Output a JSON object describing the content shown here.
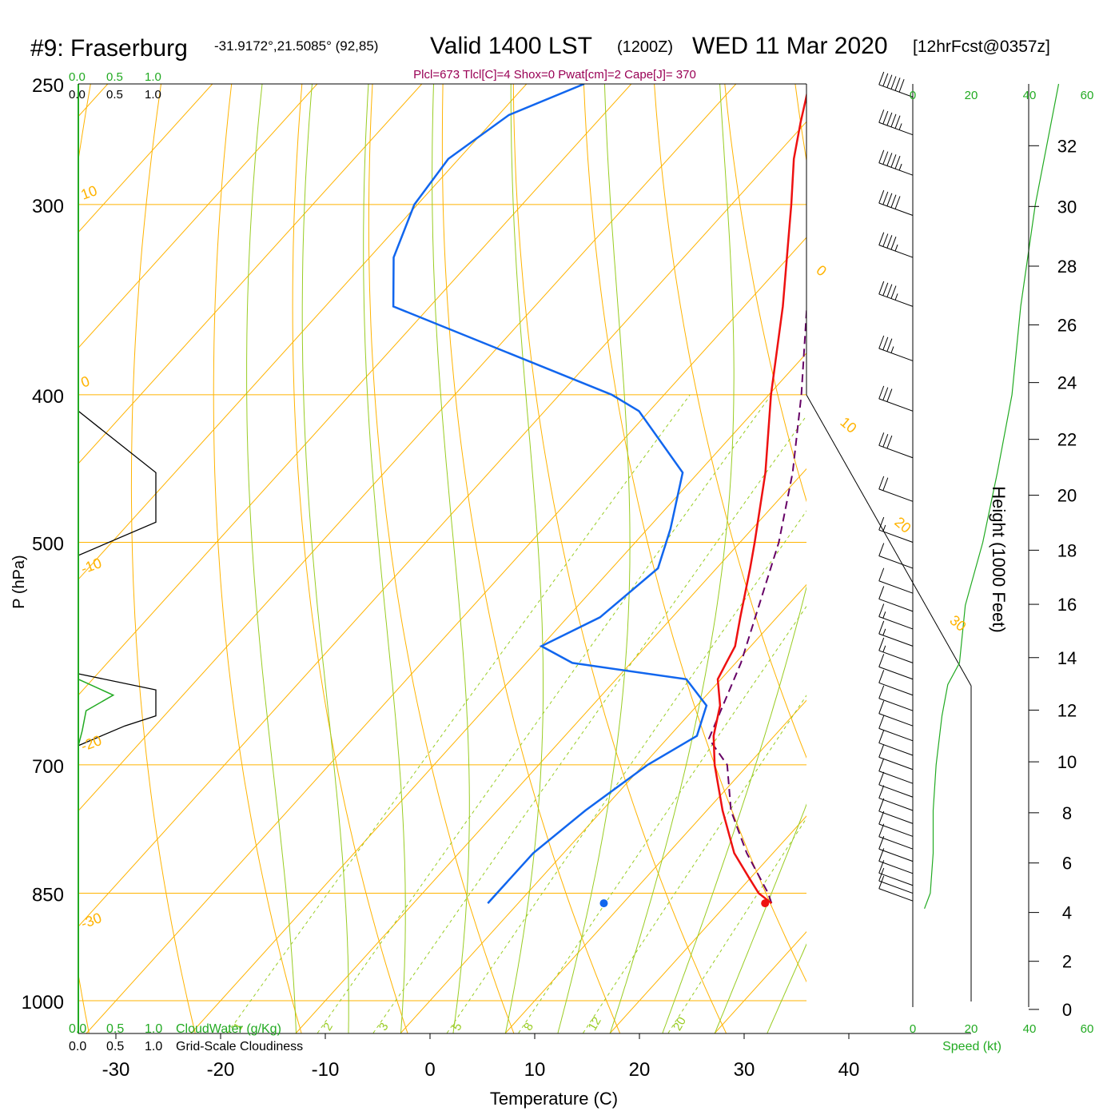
{
  "header": {
    "station": "#9: Fraserburg",
    "coords": "-31.9172°,21.5085° (92,85)",
    "valid": "Valid 1400 LST",
    "zulu": "(1200Z)",
    "date": "WED 11 Mar 2020",
    "forecast": "[12hrFcst@0357z]",
    "indices": "Plcl=673 Tlcl[C]=4 Shox=0 Pwat[cm]=2 Cape[J]= 370"
  },
  "colors": {
    "temperature": "#ee1111",
    "dewpoint": "#1166ee",
    "parcel": "#660066",
    "isobar": "#ffb300",
    "dry_adiabat": "#ffb300",
    "moist_adiabat": "#99cc22",
    "mixing_ratio": "#99cc22",
    "cloud": "#22aa22",
    "wind_speed": "#22aa22"
  },
  "chart_data": {
    "type": "line",
    "title": "Skew-T log-P sounding",
    "xlabel": "Temperature (C)",
    "ylabel": "P (hPa)",
    "y2label": "Height (1000 Feet)",
    "pressure_ticks": [
      250,
      300,
      400,
      500,
      700,
      850,
      1000
    ],
    "temp_ticks": [
      -30,
      -20,
      -10,
      0,
      10,
      20,
      30,
      40
    ],
    "height_ticks": [
      0,
      2,
      4,
      6,
      8,
      10,
      12,
      14,
      16,
      18,
      20,
      22,
      24,
      26,
      28,
      30,
      32
    ],
    "dry_adiabat_labels": [
      "10",
      "0",
      "-10",
      "-20",
      "-30",
      "0",
      "10",
      "20",
      "30"
    ],
    "mixing_ratio_labels": [
      "1",
      "2",
      "3",
      "5",
      "8",
      "12",
      "20"
    ],
    "cloud_scale_top_a": [
      "0.0",
      "0.5",
      "1.0"
    ],
    "cloud_scale_top_b": [
      "0.0",
      "0.5",
      "1.0"
    ],
    "cloud_scale_bottom_a": [
      "0.0",
      "0.5",
      "1.0"
    ],
    "cloud_scale_bottom_b": [
      "0.0",
      "0.5",
      "1.0"
    ],
    "cloudwater_label": "CloudWater (g/Kg)",
    "cloudiness_label": "Grid-Scale Cloudiness",
    "speed_ticks_top": [
      "0",
      "20",
      "40",
      "60"
    ],
    "speed_ticks_bottom": [
      "0",
      "20",
      "40",
      "60"
    ],
    "speed_label": "Speed (kt)",
    "temperature": [
      {
        "p": 250,
        "t": -43.0
      },
      {
        "p": 265,
        "t": -40.5
      },
      {
        "p": 280,
        "t": -38.0
      },
      {
        "p": 300,
        "t": -34.3
      },
      {
        "p": 350,
        "t": -26.3
      },
      {
        "p": 400,
        "t": -19.8
      },
      {
        "p": 450,
        "t": -13.6
      },
      {
        "p": 500,
        "t": -8.6
      },
      {
        "p": 520,
        "t": -6.8
      },
      {
        "p": 560,
        "t": -3.5
      },
      {
        "p": 585,
        "t": -1.5
      },
      {
        "p": 600,
        "t": -0.9
      },
      {
        "p": 615,
        "t": -0.3
      },
      {
        "p": 640,
        "t": 2.2
      },
      {
        "p": 670,
        "t": 4.2
      },
      {
        "p": 700,
        "t": 6.8
      },
      {
        "p": 750,
        "t": 11.5
      },
      {
        "p": 800,
        "t": 16.3
      },
      {
        "p": 830,
        "t": 19.8
      },
      {
        "p": 850,
        "t": 22.1
      },
      {
        "p": 863,
        "t": 24.2
      }
    ],
    "dewpoint": [
      {
        "p": 250,
        "t": -64.5
      },
      {
        "p": 262,
        "t": -69.0
      },
      {
        "p": 280,
        "t": -71.0
      },
      {
        "p": 300,
        "t": -70.3
      },
      {
        "p": 325,
        "t": -67.7
      },
      {
        "p": 350,
        "t": -63.5
      },
      {
        "p": 400,
        "t": -35.0
      },
      {
        "p": 410,
        "t": -31.0
      },
      {
        "p": 450,
        "t": -21.5
      },
      {
        "p": 490,
        "t": -17.8
      },
      {
        "p": 520,
        "t": -15.6
      },
      {
        "p": 560,
        "t": -16.9
      },
      {
        "p": 585,
        "t": -20.0
      },
      {
        "p": 600,
        "t": -15.6
      },
      {
        "p": 615,
        "t": -3.3
      },
      {
        "p": 640,
        "t": 0.9
      },
      {
        "p": 670,
        "t": 2.6
      },
      {
        "p": 700,
        "t": 0.4
      },
      {
        "p": 750,
        "t": -1.6
      },
      {
        "p": 800,
        "t": -2.9
      },
      {
        "p": 850,
        "t": -2.9
      },
      {
        "p": 863,
        "t": -2.9
      }
    ],
    "parcel": [
      {
        "p": 863,
        "t": 24.2
      },
      {
        "p": 850,
        "t": 23.0
      },
      {
        "p": 800,
        "t": 17.5
      },
      {
        "p": 750,
        "t": 12.3
      },
      {
        "p": 700,
        "t": 8.0
      },
      {
        "p": 673,
        "t": 4.0
      },
      {
        "p": 600,
        "t": 0.5
      },
      {
        "p": 500,
        "t": -6.3
      },
      {
        "p": 450,
        "t": -11.0
      },
      {
        "p": 400,
        "t": -16.9
      },
      {
        "p": 350,
        "t": -24.0
      },
      {
        "p": 300,
        "t": -32.0
      },
      {
        "p": 285,
        "t": -35.0
      }
    ],
    "surface_temperature": 32,
    "surface_dewpoint": 16.6,
    "wind_speed_kt": [
      {
        "p": 870,
        "kt": 4
      },
      {
        "p": 850,
        "kt": 6
      },
      {
        "p": 800,
        "kt": 7
      },
      {
        "p": 750,
        "kt": 7
      },
      {
        "p": 700,
        "kt": 8
      },
      {
        "p": 650,
        "kt": 10
      },
      {
        "p": 620,
        "kt": 12
      },
      {
        "p": 600,
        "kt": 16
      },
      {
        "p": 550,
        "kt": 18
      },
      {
        "p": 500,
        "kt": 24
      },
      {
        "p": 450,
        "kt": 29
      },
      {
        "p": 400,
        "kt": 34
      },
      {
        "p": 350,
        "kt": 37
      },
      {
        "p": 300,
        "kt": 42
      },
      {
        "p": 250,
        "kt": 50
      }
    ],
    "barbs": [
      {
        "p": 860,
        "kt": 10
      },
      {
        "p": 850,
        "kt": 10
      },
      {
        "p": 840,
        "kt": 10
      },
      {
        "p": 825,
        "kt": 10
      },
      {
        "p": 810,
        "kt": 10
      },
      {
        "p": 795,
        "kt": 10
      },
      {
        "p": 780,
        "kt": 10
      },
      {
        "p": 765,
        "kt": 10
      },
      {
        "p": 750,
        "kt": 10
      },
      {
        "p": 735,
        "kt": 10
      },
      {
        "p": 720,
        "kt": 10
      },
      {
        "p": 705,
        "kt": 10
      },
      {
        "p": 690,
        "kt": 10
      },
      {
        "p": 675,
        "kt": 10
      },
      {
        "p": 660,
        "kt": 10
      },
      {
        "p": 645,
        "kt": 10
      },
      {
        "p": 630,
        "kt": 10
      },
      {
        "p": 615,
        "kt": 10
      },
      {
        "p": 600,
        "kt": 15
      },
      {
        "p": 585,
        "kt": 15
      },
      {
        "p": 570,
        "kt": 15
      },
      {
        "p": 555,
        "kt": 10
      },
      {
        "p": 540,
        "kt": 10
      },
      {
        "p": 520,
        "kt": 10
      },
      {
        "p": 500,
        "kt": 15
      },
      {
        "p": 470,
        "kt": 20
      },
      {
        "p": 440,
        "kt": 30
      },
      {
        "p": 410,
        "kt": 30
      },
      {
        "p": 380,
        "kt": 35
      },
      {
        "p": 350,
        "kt": 45
      },
      {
        "p": 325,
        "kt": 45
      },
      {
        "p": 305,
        "kt": 50
      },
      {
        "p": 287,
        "kt": 55
      },
      {
        "p": 270,
        "kt": 55
      },
      {
        "p": 255,
        "kt": 60
      }
    ],
    "cloudiness_profile": [
      {
        "p": 410,
        "v": 0.0
      },
      {
        "p": 450,
        "v": 1.0
      },
      {
        "p": 485,
        "v": 1.0
      },
      {
        "p": 510,
        "v": 0.0
      },
      {
        "p": 610,
        "v": 0.0
      },
      {
        "p": 625,
        "v": 1.0
      },
      {
        "p": 650,
        "v": 1.0
      },
      {
        "p": 660,
        "v": 0.6
      },
      {
        "p": 680,
        "v": 0.0
      }
    ],
    "cloudwater_profile": [
      {
        "p": 615,
        "v": 0.0
      },
      {
        "p": 630,
        "v": 0.45
      },
      {
        "p": 645,
        "v": 0.1
      },
      {
        "p": 665,
        "v": 0.05
      },
      {
        "p": 680,
        "v": 0.0
      }
    ]
  }
}
